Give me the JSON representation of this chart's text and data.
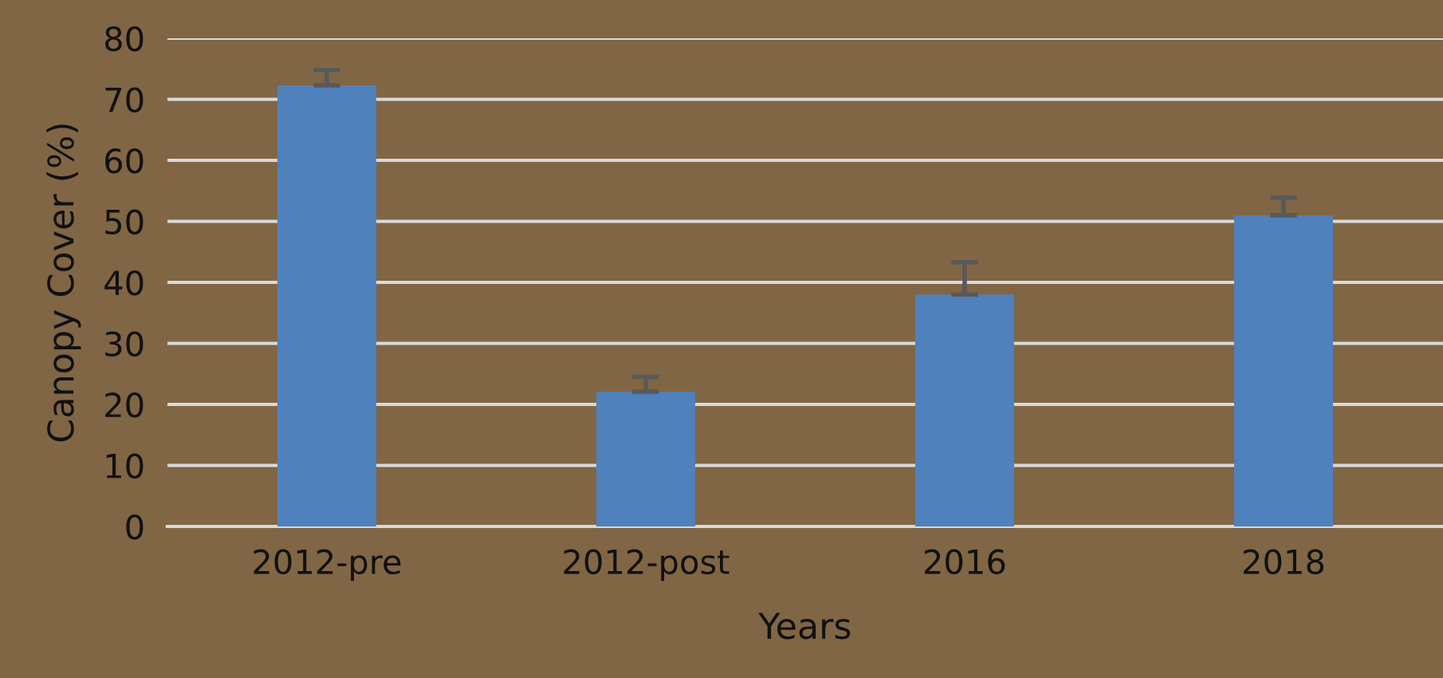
{
  "chart_data": {
    "type": "bar",
    "xlabel": "Years",
    "ylabel": "Canopy Cover (%)",
    "categories": [
      "2012-pre",
      "2012-post",
      "2016",
      "2018"
    ],
    "values": [
      72.3,
      22.1,
      38.0,
      51.0
    ],
    "errors": [
      [
        72.3,
        74.8
      ],
      [
        22.1,
        24.5
      ],
      [
        38.0,
        43.3
      ],
      [
        51.0,
        53.9
      ]
    ],
    "color": "#4f81bd",
    "ylim": [
      0,
      80
    ],
    "yticks": [
      0,
      10,
      20,
      30,
      40,
      50,
      60,
      70,
      80
    ],
    "grid": "y"
  }
}
